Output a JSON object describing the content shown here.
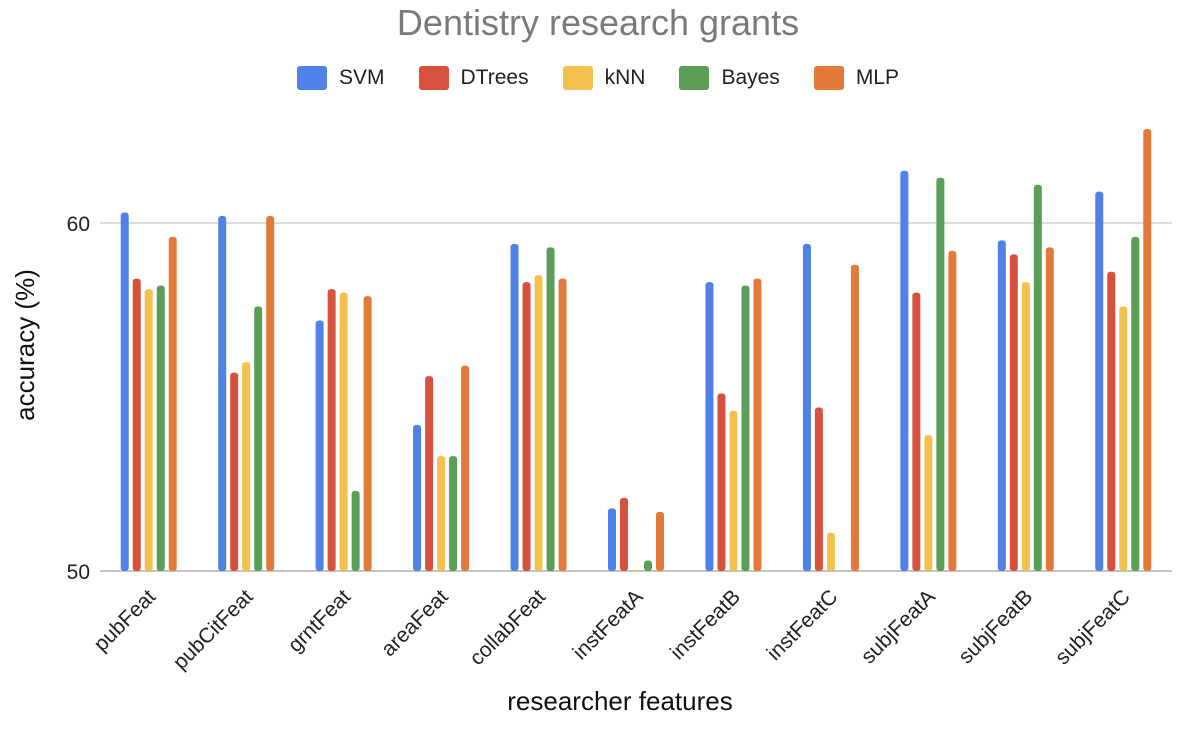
{
  "chart_data": {
    "type": "bar",
    "title": "Dentistry research grants",
    "xlabel": "researcher features",
    "ylabel": "accuracy (%)",
    "ylim": [
      50,
      62.7
    ],
    "yticks": [
      50,
      60
    ],
    "grid": true,
    "legend_position": "top",
    "categories": [
      "pubFeat",
      "pubCitFeat",
      "grntFeat",
      "areaFeat",
      "collabFeat",
      "instFeatA",
      "instFeatB",
      "instFeatC",
      "subjFeatA",
      "subjFeatB",
      "subjFeatC"
    ],
    "series": [
      {
        "name": "SVM",
        "color": "#4f81e8",
        "values": [
          60.3,
          60.2,
          57.2,
          54.2,
          59.4,
          51.8,
          58.3,
          59.4,
          61.5,
          59.5,
          60.9
        ]
      },
      {
        "name": "DTrees",
        "color": "#d6523e",
        "values": [
          58.4,
          55.7,
          58.1,
          55.6,
          58.3,
          52.1,
          55.1,
          54.7,
          58.0,
          59.1,
          58.6
        ]
      },
      {
        "name": "kNN",
        "color": "#f2c14e",
        "values": [
          58.1,
          56.0,
          58.0,
          53.3,
          58.5,
          50.0,
          54.6,
          51.1,
          53.9,
          58.3,
          57.6
        ]
      },
      {
        "name": "Bayes",
        "color": "#5a9e58",
        "values": [
          58.2,
          57.6,
          52.3,
          53.3,
          59.3,
          50.3,
          58.2,
          null,
          61.3,
          61.1,
          59.6
        ]
      },
      {
        "name": "MLP",
        "color": "#e47a3a",
        "values": [
          59.6,
          60.2,
          57.9,
          55.9,
          58.4,
          51.7,
          58.4,
          58.8,
          59.2,
          59.3,
          62.7
        ]
      }
    ]
  }
}
